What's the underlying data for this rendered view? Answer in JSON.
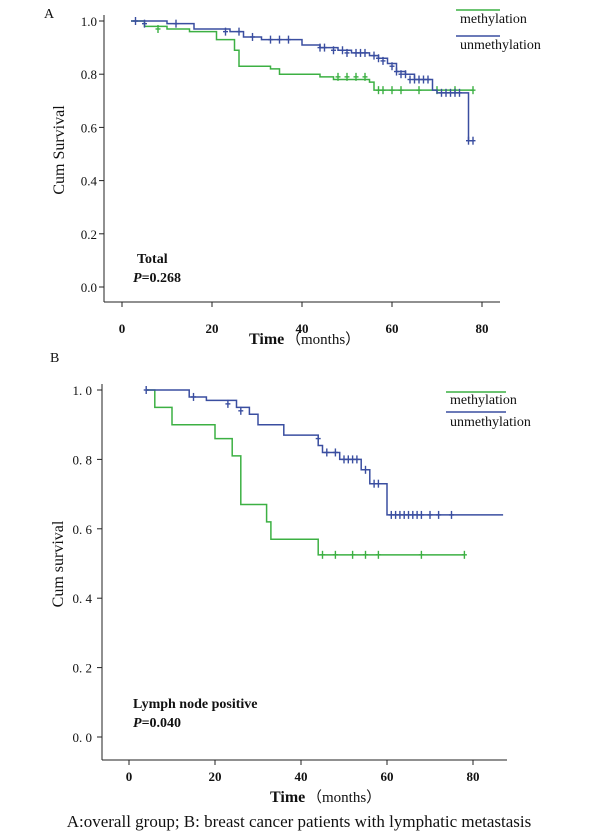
{
  "figure": {
    "caption": "A:overall group; B: breast cancer patients with lymphatic metastasis"
  },
  "chart_data": [
    {
      "type": "line",
      "panel_label": "A",
      "xlabel": "Time",
      "xlabel_unit": "（months）",
      "ylabel": "Cum Survival",
      "xlim": [
        0,
        85
      ],
      "ylim": [
        0,
        1.0
      ],
      "x_ticks": [
        0,
        20,
        40,
        60,
        80
      ],
      "y_ticks": [
        "0.0",
        "0.2",
        "0.4",
        "0.6",
        "0.8",
        "1.0"
      ],
      "annotation_title": "Total",
      "annotation_p_symbol": "P",
      "annotation_p_value": "=0.268",
      "legend_position": "top-right",
      "series": [
        {
          "name": "methylation",
          "color": "#3cb043",
          "steps": [
            [
              2,
              1.0
            ],
            [
              5,
              0.98
            ],
            [
              10,
              0.97
            ],
            [
              15,
              0.96
            ],
            [
              21,
              0.93
            ],
            [
              25,
              0.89
            ],
            [
              26,
              0.83
            ],
            [
              33,
              0.82
            ],
            [
              35,
              0.8
            ],
            [
              44,
              0.79
            ],
            [
              47,
              0.78
            ],
            [
              55,
              0.77
            ],
            [
              56,
              0.74
            ],
            [
              66,
              0.74
            ],
            [
              78,
              0.74
            ]
          ],
          "censored": [
            [
              8,
              0.97
            ],
            [
              48,
              0.79
            ],
            [
              50,
              0.79
            ],
            [
              52,
              0.79
            ],
            [
              54,
              0.79
            ],
            [
              57,
              0.74
            ],
            [
              58,
              0.74
            ],
            [
              60,
              0.74
            ],
            [
              62,
              0.74
            ],
            [
              66,
              0.74
            ],
            [
              70,
              0.74
            ],
            [
              74,
              0.74
            ],
            [
              78,
              0.74
            ]
          ]
        },
        {
          "name": "unmethylation",
          "color": "#3a4ea0",
          "steps": [
            [
              2,
              1.0
            ],
            [
              10,
              0.99
            ],
            [
              16,
              0.97
            ],
            [
              24,
              0.96
            ],
            [
              27,
              0.94
            ],
            [
              31,
              0.93
            ],
            [
              40,
              0.91
            ],
            [
              44,
              0.9
            ],
            [
              48,
              0.89
            ],
            [
              51,
              0.88
            ],
            [
              55,
              0.87
            ],
            [
              57,
              0.86
            ],
            [
              59,
              0.84
            ],
            [
              61,
              0.81
            ],
            [
              63,
              0.8
            ],
            [
              65,
              0.78
            ],
            [
              69,
              0.74
            ],
            [
              70,
              0.73
            ],
            [
              77,
              0.55
            ],
            [
              78,
              0.55
            ]
          ],
          "censored": [
            [
              3,
              1.0
            ],
            [
              5,
              0.99
            ],
            [
              12,
              0.99
            ],
            [
              23,
              0.96
            ],
            [
              26,
              0.96
            ],
            [
              29,
              0.94
            ],
            [
              33,
              0.93
            ],
            [
              35,
              0.93
            ],
            [
              37,
              0.93
            ],
            [
              44,
              0.9
            ],
            [
              45,
              0.9
            ],
            [
              47,
              0.89
            ],
            [
              49,
              0.89
            ],
            [
              50,
              0.88
            ],
            [
              52,
              0.88
            ],
            [
              53,
              0.88
            ],
            [
              54,
              0.88
            ],
            [
              56,
              0.87
            ],
            [
              57,
              0.86
            ],
            [
              58,
              0.85
            ],
            [
              60,
              0.83
            ],
            [
              61,
              0.81
            ],
            [
              62,
              0.8
            ],
            [
              63,
              0.8
            ],
            [
              64,
              0.78
            ],
            [
              65,
              0.78
            ],
            [
              66,
              0.78
            ],
            [
              67,
              0.78
            ],
            [
              68,
              0.78
            ],
            [
              71,
              0.73
            ],
            [
              72,
              0.73
            ],
            [
              73,
              0.73
            ],
            [
              74,
              0.73
            ],
            [
              75,
              0.73
            ],
            [
              77,
              0.55
            ],
            [
              78,
              0.55
            ]
          ]
        }
      ]
    },
    {
      "type": "line",
      "panel_label": "B",
      "xlabel": "Time",
      "xlabel_unit": "（months）",
      "ylabel": "Cum survival",
      "xlim": [
        -3,
        87
      ],
      "ylim": [
        0,
        1.0
      ],
      "x_ticks": [
        0,
        20,
        40,
        60,
        80
      ],
      "y_ticks": [
        "0. 0",
        "0. 2",
        "0. 4",
        "0. 6",
        "0. 8",
        "1. 0"
      ],
      "annotation_title": "Lymph node positive",
      "annotation_p_symbol": "P",
      "annotation_p_value": "=0.040",
      "legend_position": "top-right",
      "series": [
        {
          "name": "methylation",
          "color": "#3cb043",
          "steps": [
            [
              4,
              1.0
            ],
            [
              6,
              0.95
            ],
            [
              10,
              0.9
            ],
            [
              20,
              0.86
            ],
            [
              24,
              0.81
            ],
            [
              26,
              0.67
            ],
            [
              32,
              0.62
            ],
            [
              33,
              0.57
            ],
            [
              44,
              0.525
            ],
            [
              78,
              0.525
            ]
          ],
          "censored": [
            [
              45,
              0.525
            ],
            [
              48,
              0.525
            ],
            [
              52,
              0.525
            ],
            [
              55,
              0.525
            ],
            [
              58,
              0.525
            ],
            [
              68,
              0.525
            ],
            [
              78,
              0.525
            ]
          ]
        },
        {
          "name": "unmethylation",
          "color": "#3a4ea0",
          "steps": [
            [
              4,
              1.0
            ],
            [
              14,
              0.98
            ],
            [
              18,
              0.97
            ],
            [
              25,
              0.95
            ],
            [
              28,
              0.93
            ],
            [
              30,
              0.9
            ],
            [
              36,
              0.87
            ],
            [
              44,
              0.84
            ],
            [
              45,
              0.82
            ],
            [
              49,
              0.8
            ],
            [
              54,
              0.77
            ],
            [
              56,
              0.73
            ],
            [
              60,
              0.64
            ],
            [
              87,
              0.64
            ]
          ],
          "censored": [
            [
              4,
              1.0
            ],
            [
              15,
              0.98
            ],
            [
              23,
              0.96
            ],
            [
              26,
              0.94
            ],
            [
              44,
              0.86
            ],
            [
              46,
              0.82
            ],
            [
              48,
              0.82
            ],
            [
              50,
              0.8
            ],
            [
              51,
              0.8
            ],
            [
              52,
              0.8
            ],
            [
              53,
              0.8
            ],
            [
              55,
              0.77
            ],
            [
              57,
              0.73
            ],
            [
              58,
              0.73
            ],
            [
              61,
              0.64
            ],
            [
              62,
              0.64
            ],
            [
              63,
              0.64
            ],
            [
              64,
              0.64
            ],
            [
              65,
              0.64
            ],
            [
              66,
              0.64
            ],
            [
              67,
              0.64
            ],
            [
              68,
              0.64
            ],
            [
              70,
              0.64
            ],
            [
              72,
              0.64
            ],
            [
              75,
              0.64
            ]
          ]
        }
      ]
    }
  ]
}
